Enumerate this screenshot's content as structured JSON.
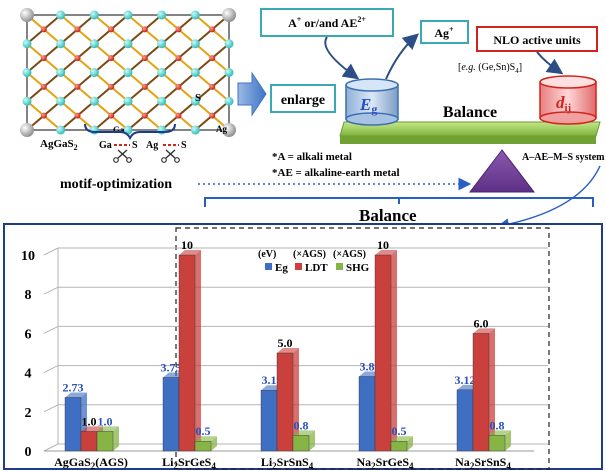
{
  "crystal": {
    "compound": "AgGaS",
    "compound_sub": "2",
    "label_s": "S",
    "label_ga": "Ga",
    "label_ag": "Ag",
    "bond_ga": "Ga",
    "bond_ga_suffix": "S",
    "bond_ag": "Ag",
    "bond_ag_suffix": "S",
    "motif": "motif-optimization"
  },
  "scheme": {
    "enlarge": "enlarge",
    "cation_box": "A",
    "cation_box_sup": "+",
    "cation_box_mid": " or/and AE",
    "cation_box_sup2": "2+",
    "ag_box": "Ag",
    "ag_box_sup": "+",
    "nlo_box": "NLO active units",
    "nlo_example_pre": "[",
    "nlo_example_eg": "e.g.",
    "nlo_example_post": " (Ge,Sn)S",
    "nlo_example_sub": "4",
    "nlo_example_end": "]",
    "eg_symbol": "E",
    "eg_sub": "g",
    "dij_symbol": "d",
    "dij_sub": "ij",
    "balance_top": "Balance",
    "system": "A–AE–M–S system",
    "note_a": "*A = alkali  metal",
    "note_ae": "*AE = alkaline-earth  metal",
    "balance_mid": "Balance"
  },
  "chart_data": {
    "type": "bar",
    "categories": [
      {
        "base": "AgGaS",
        "sub": "2",
        "rest": "(AGS)"
      },
      {
        "base": "Li",
        "sub": "2",
        "rest": "SrGeS",
        "sub2": "4"
      },
      {
        "base": "Li",
        "sub": "2",
        "rest": "SrSnS",
        "sub2": "4"
      },
      {
        "base": "Na",
        "sub": "2",
        "rest": "SrGeS",
        "sub2": "4"
      },
      {
        "base": "Na",
        "sub": "2",
        "rest": "SrSnS",
        "sub2": "4"
      }
    ],
    "series": [
      {
        "name": "Eg",
        "color": "#3e6fc3",
        "values": [
          2.73,
          3.75,
          3.1,
          3.8,
          3.12
        ],
        "labels": [
          "2.73",
          "3.75",
          "3.1",
          "3.8",
          "3.12"
        ],
        "label_color": "#2a4fbd"
      },
      {
        "name": "LDT",
        "color": "#c9403d",
        "values": [
          1.0,
          10,
          5.0,
          10,
          6.0
        ],
        "labels": [
          "1.0",
          "10",
          "5.0",
          "10",
          "6.0"
        ],
        "label_color": "#000000"
      },
      {
        "name": "SHG",
        "color": "#86b445",
        "values": [
          1.0,
          0.5,
          0.8,
          0.5,
          0.8
        ],
        "labels": [
          "1.0",
          "0.5",
          "0.8",
          "0.5",
          "0.8"
        ],
        "label_color": "#2a4fbd"
      }
    ],
    "legend_units": [
      "(eV)",
      "(×AGS)",
      "(×AGS)"
    ],
    "legend_position": "top-center",
    "yticks": [
      "0",
      "2",
      "4",
      "6",
      "8",
      "10"
    ],
    "ylim": [
      0,
      11
    ],
    "grid": true
  }
}
